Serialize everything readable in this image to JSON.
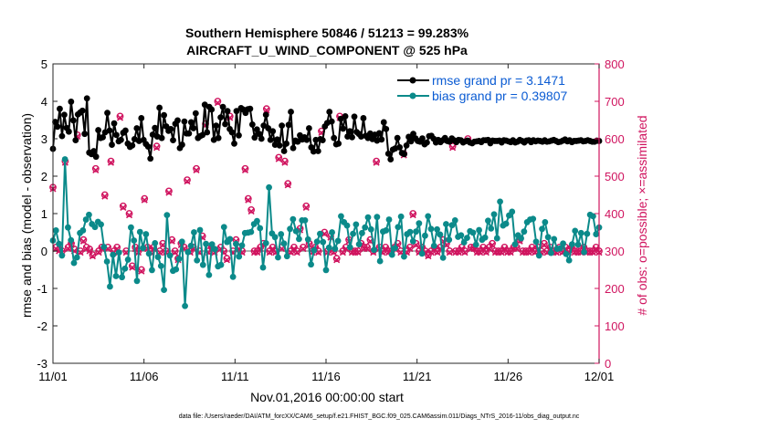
{
  "chart_data": {
    "type": "line",
    "title_line1": "Southern Hemisphere 50846 / 51213 = 99.283%",
    "title_line2": "AIRCRAFT_U_WIND_COMPONENT @ 525 hPa",
    "xlabel": "Nov.01,2016 00:00:00 start",
    "ylabel_left": "rmse and bias (model - observation)",
    "ylabel_right": "# of obs: o=possible; ×=assimilated",
    "footnote": "data file: /Users/raeder/DAI/ATM_forcXX/CAM6_setup/f.e21.FHIST_BGC.f09_025.CAM6assim.011/Diags_NTrS_2016-11/obs_diag_output.nc",
    "x_range": [
      0,
      30
    ],
    "ylim_left": [
      -3,
      5
    ],
    "ylim_right": [
      0,
      800
    ],
    "x_ticks": [
      {
        "value": 0,
        "label": "11/01"
      },
      {
        "value": 5,
        "label": "11/06"
      },
      {
        "value": 10,
        "label": "11/11"
      },
      {
        "value": 15,
        "label": "11/16"
      },
      {
        "value": 20,
        "label": "11/21"
      },
      {
        "value": 25,
        "label": "11/26"
      },
      {
        "value": 30,
        "label": "12/01"
      }
    ],
    "y_ticks_left": [
      "-3",
      "-2",
      "-1",
      "0",
      "1",
      "2",
      "3",
      "4",
      "5"
    ],
    "y_ticks_right": [
      "0",
      "100",
      "200",
      "300",
      "400",
      "500",
      "600",
      "700",
      "800"
    ],
    "colors": {
      "rmse": "#000000",
      "bias": "#0b8a8a",
      "obs": "#d0145f",
      "zero_line": "#b3b3b3"
    },
    "series": [
      {
        "name": "rmse",
        "legend": "rmse grand pr = 3.1471",
        "axis": "left",
        "values": [
          2.73,
          3.45,
          3.32,
          3.8,
          3.07,
          3.64,
          3.29,
          3.19,
          3.99,
          3.49,
          2.96,
          3.65,
          3.7,
          3.75,
          3.13,
          4.08,
          2.63,
          2.59,
          2.67,
          2.52,
          3.23,
          3.02,
          3.04,
          3.17,
          3.69,
          3.22,
          2.84,
          3.41,
          3.1,
          2.93,
          2.97,
          3.16,
          3.22,
          2.87,
          2.78,
          2.82,
          2.99,
          3.28,
          2.94,
          3.55,
          2.97,
          2.86,
          2.79,
          2.47,
          3.11,
          3.29,
          3.06,
          3.83,
          3.02,
          3.63,
          3.33,
          3.21,
          3.26,
          2.96,
          3.4,
          3.49,
          2.75,
          2.84,
          3.46,
          3.14,
          3.14,
          3.44,
          3.28,
          3.68,
          3.02,
          3.07,
          3.1,
          3.91,
          3.17,
          3.85,
          3.78,
          2.97,
          3.35,
          3.02,
          3.57,
          3.85,
          3.39,
          3.74,
          3.26,
          3.17,
          2.87,
          3.74,
          3.09,
          3.82,
          3.78,
          3.69,
          3.79,
          3.8,
          3.38,
          3.03,
          3.25,
          3.13,
          3.0,
          3.35,
          3.64,
          3.28,
          2.97,
          3.2,
          2.84,
          2.98,
          2.82,
          3.35,
          2.67,
          2.87,
          3.37,
          3.72,
          2.75,
          2.95,
          2.92,
          3.09,
          2.98,
          3.04,
          2.97,
          3.28,
          2.77,
          2.66,
          2.97,
          2.67,
          2.99,
          2.96,
          3.33,
          3.42,
          3.72,
          3.46,
          3.02,
          2.85,
          2.87,
          3.53,
          3.27,
          3.6,
          3.06,
          3.2,
          3.04,
          3.59,
          3.18,
          3.13,
          3.06,
          3.55,
          3.08,
          3.02,
          3.14,
          2.99,
          3.11,
          2.95,
          3.15,
          2.98,
          3.44,
          3.26,
          2.6,
          2.45,
          2.71,
          2.74,
          3.02,
          2.77,
          2.62,
          2.59,
          2.82,
          3.05,
          2.93,
          3.13,
          3.01,
          2.94,
          2.92,
          3.01,
          2.85,
          2.9,
          3.07,
          3.08,
          3.0,
          2.9,
          2.97,
          2.91,
          2.96,
          3.02,
          2.94,
          2.92,
          3.01,
          2.96,
          2.91,
          2.97,
          2.96,
          2.9,
          2.93,
          2.95,
          2.9,
          2.88,
          2.92,
          2.93,
          2.94,
          2.91,
          2.96,
          2.96,
          2.97,
          2.88,
          2.95,
          2.94,
          2.94,
          2.95,
          2.9,
          2.96,
          2.95,
          2.93,
          2.91,
          2.96,
          2.9,
          2.92,
          2.97,
          2.94,
          2.9,
          2.95,
          2.96,
          2.91,
          2.96,
          2.93,
          2.95,
          2.94,
          2.92,
          2.96,
          2.92,
          2.93,
          2.95,
          2.97,
          2.94,
          2.91,
          2.92,
          2.95,
          2.98,
          2.93,
          2.96,
          2.91,
          2.94,
          2.94,
          2.95,
          2.96,
          2.93,
          2.94,
          2.96,
          2.94,
          2.92,
          2.92,
          2.95,
          2.94
        ]
      },
      {
        "name": "bias",
        "legend": "bias grand pr = 0.39807",
        "axis": "left",
        "values": [
          0.28,
          0.55,
          0.19,
          -0.12,
          2.45,
          0.63,
          0.29,
          -0.32,
          -0.17,
          0.48,
          0.55,
          0.84,
          0.97,
          0.72,
          0.64,
          0.78,
          0.71,
          0.11,
          -0.28,
          -0.95,
          -0.1,
          -0.67,
          -0.04,
          -0.7,
          -0.47,
          -0.23,
          0.63,
          0.28,
          -0.8,
          0.51,
          0.08,
          0.45,
          -0.07,
          -0.51,
          0.21,
          -0.16,
          -0.4,
          -1.04,
          0.96,
          -0.12,
          -0.53,
          -0.49,
          -0.21,
          0.25,
          -1.47,
          -0.03,
          0.14,
          0.5,
          -0.25,
          0.56,
          -0.37,
          0.19,
          -0.64,
          0.18,
          0.05,
          -0.41,
          -0.37,
          0.64,
          0.24,
          0.32,
          -0.69,
          0.19,
          -0.15,
          0.15,
          0.48,
          0.49,
          0.51,
          0.72,
          0.8,
          0.61,
          -0.44,
          0.21,
          1.7,
          0.47,
          0.37,
          -0.17,
          0.45,
          0.2,
          -0.14,
          0.59,
          0.85,
          0.53,
          0.32,
          0.82,
          0.82,
          0.31,
          -0.36,
          0.02,
          0.25,
          0.46,
          0.24,
          -0.51,
          0.09,
          0.5,
          0.06,
          0.27,
          0.93,
          0.77,
          0.68,
          0.1,
          0.46,
          0.71,
          0.18,
          0.48,
          0.63,
          0.9,
          0.58,
          0.03,
          0.91,
          -0.27,
          0.52,
          0.55,
          0.84,
          -0.1,
          0.08,
          0.64,
          0.92,
          -0.15,
          0.45,
          0.51,
          0.26,
          0.52,
          0.74,
          -0.07,
          0.41,
          0.93,
          0.59,
          0.14,
          0.58,
          0.44,
          -0.18,
          0.72,
          0.3,
          0.69,
          0.82,
          0.38,
          0.42,
          0.23,
          0.35,
          0.53,
          0.49,
          0.17,
          0.56,
          0.3,
          0.36,
          0.81,
          0.6,
          0.98,
          0.34,
          1.32,
          0.68,
          0.73,
          0.95,
          1.05,
          0.18,
          0.42,
          0.34,
          0.52,
          0.77,
          0.84,
          0.86,
          0.25,
          -0.12,
          0.59,
          0.77,
          0.37,
          -0.05,
          0.32,
          0.06,
          0.07,
          0.2,
          -0.08,
          -0.25,
          0.18,
          0.54,
          0.17,
          0.48,
          -0.03,
          0.46,
          0.97,
          0.93,
          0.45,
          0.63
        ]
      },
      {
        "name": "obs_possible",
        "legend": "",
        "axis": "right",
        "values": [
          470,
          310,
          305,
          300,
          540,
          310,
          320,
          305,
          610,
          300,
          330,
          310,
          305,
          290,
          520,
          300,
          310,
          450,
          310,
          540,
          300,
          310,
          660,
          420,
          300,
          400,
          260,
          310,
          300,
          250,
          440,
          310,
          300,
          310,
          580,
          300,
          320,
          300,
          460,
          330,
          300,
          280,
          320,
          310,
          490,
          300,
          310,
          520,
          300,
          340,
          640,
          300,
          310,
          300,
          700,
          310,
          300,
          280,
          660,
          300,
          330,
          310,
          300,
          520,
          440,
          410,
          300,
          300,
          310,
          320,
          680,
          300,
          310,
          300,
          550,
          310,
          540,
          480,
          300,
          310,
          300,
          360,
          310,
          420,
          320,
          300,
          310,
          300,
          620,
          350,
          300,
          340,
          300,
          280,
          660,
          300,
          310,
          330,
          300,
          300,
          300,
          320,
          310,
          310,
          330,
          300,
          540,
          310,
          300,
          310,
          300,
          300,
          310,
          320,
          300,
          560,
          300,
          310,
          400,
          320,
          300,
          310,
          300,
          290,
          300,
          310,
          300,
          310,
          330,
          320,
          300,
          580,
          300,
          300,
          310,
          300,
          600,
          310,
          310,
          300,
          300,
          310,
          300,
          310,
          320,
          300,
          300,
          300,
          310,
          300,
          300,
          310,
          310,
          330,
          300,
          300,
          300,
          310,
          300,
          310,
          300,
          320,
          300,
          310,
          300,
          300,
          310,
          300,
          310,
          300,
          310,
          300,
          300,
          300,
          310,
          300,
          300,
          300,
          310,
          300
        ]
      },
      {
        "name": "obs_assimilated",
        "legend": "",
        "axis": "right",
        "values": [
          466,
          306,
          300,
          296,
          536,
          306,
          316,
          300,
          606,
          296,
          326,
          306,
          300,
          286,
          516,
          296,
          306,
          446,
          306,
          536,
          296,
          306,
          656,
          416,
          296,
          396,
          256,
          306,
          296,
          246,
          436,
          306,
          296,
          306,
          576,
          296,
          316,
          296,
          456,
          326,
          296,
          276,
          316,
          306,
          486,
          296,
          306,
          516,
          296,
          336,
          636,
          296,
          306,
          296,
          696,
          306,
          296,
          276,
          656,
          296,
          326,
          306,
          296,
          516,
          436,
          406,
          296,
          296,
          306,
          316,
          676,
          296,
          306,
          296,
          546,
          306,
          536,
          476,
          296,
          306,
          296,
          356,
          306,
          416,
          316,
          296,
          306,
          296,
          616,
          346,
          296,
          336,
          296,
          276,
          656,
          296,
          306,
          326,
          296,
          296,
          296,
          316,
          306,
          306,
          326,
          296,
          536,
          306,
          296,
          306,
          296,
          296,
          306,
          316,
          296,
          556,
          296,
          306,
          396,
          316,
          296,
          306,
          296,
          286,
          296,
          306,
          296,
          306,
          326,
          316,
          296,
          576,
          296,
          296,
          306,
          296,
          596,
          306,
          306,
          296,
          296,
          306,
          296,
          306,
          316,
          296,
          296,
          296,
          306,
          296,
          296,
          306,
          306,
          326,
          296,
          296,
          296,
          306,
          296,
          306,
          296,
          316,
          296,
          306,
          296,
          296,
          306,
          296,
          306,
          296,
          306,
          296,
          296,
          296,
          306,
          296,
          296,
          296,
          306,
          296
        ]
      }
    ]
  }
}
